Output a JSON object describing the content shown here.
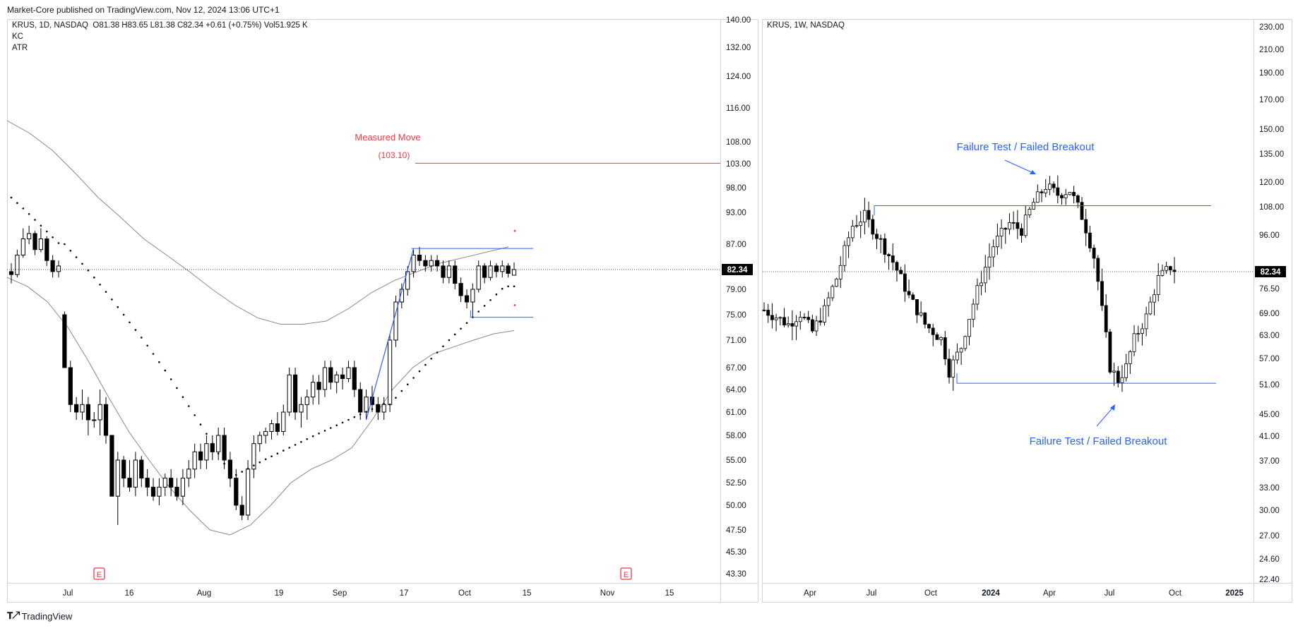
{
  "publisher_line": "Market-Core published on TradingView.com, Nov 12, 2024 13:06 UTC+1",
  "footer_brand": "TradingView",
  "left_panel": {
    "header": "KRUS, 1D, NASDAQ",
    "ohlc": "O81.38  H83.65  L81.38  C82.34  +0.61 (+0.75%)  Vol51.925 K",
    "indicators": [
      "KC",
      "ATR"
    ],
    "last_price": "82.34",
    "annotation_title": "Measured Move",
    "annotation_value": "(103.10)",
    "earnings_marker": "E"
  },
  "right_panel": {
    "header": "KRUS, 1W, NASDAQ",
    "last_price": "82.34",
    "annotation_top": "Failure Test / Failed Breakout",
    "annotation_bottom": "Failure Test / Failed Breakout"
  },
  "colors": {
    "up": "#ffffff",
    "down": "#000000",
    "outline": "#000000",
    "channel": "#888888",
    "measured_move": "#f23645",
    "level_lines": "#2962ff",
    "annotation_blue": "#2962ff"
  },
  "chart_data": [
    {
      "type": "candlestick",
      "timeframe": "1D",
      "y_ticks": [
        "140.00",
        "132.00",
        "124.00",
        "116.00",
        "108.00",
        "103.00",
        "98.00",
        "93.00",
        "87.00",
        "82.34",
        "79.00",
        "75.00",
        "71.00",
        "67.00",
        "64.00",
        "61.00",
        "58.00",
        "55.00",
        "52.50",
        "50.00",
        "47.50",
        "45.30",
        "43.30"
      ],
      "x_ticks": [
        "Jul",
        "16",
        "Aug",
        "19",
        "Sep",
        "17",
        "Oct",
        "15",
        "Nov",
        "15"
      ],
      "ylim": [
        43.3,
        140
      ],
      "y_scale": "log",
      "last_close": 82.34,
      "measured_move_target": 103.1,
      "range_high": 86.2,
      "range_low": 74.6,
      "candles": [
        [
          82,
          83.5,
          80,
          81.5
        ],
        [
          81.5,
          86,
          81,
          85
        ],
        [
          85,
          90,
          84.5,
          88
        ],
        [
          88,
          90.5,
          87,
          89
        ],
        [
          89,
          89.5,
          85,
          86
        ],
        [
          86,
          90,
          85.5,
          88
        ],
        [
          88,
          88.5,
          83,
          84
        ],
        [
          84,
          85,
          81,
          82
        ],
        [
          82,
          84,
          81,
          83
        ],
        [
          75,
          75.5,
          67,
          67
        ],
        [
          67,
          68,
          61,
          62
        ],
        [
          62,
          63,
          60,
          61
        ],
        [
          61,
          64,
          60,
          62
        ],
        [
          62,
          63,
          58,
          60
        ],
        [
          60,
          61,
          59,
          60
        ],
        [
          60,
          64,
          58,
          62
        ],
        [
          62,
          63,
          57,
          58
        ],
        [
          58,
          58,
          51,
          51
        ],
        [
          51,
          56,
          48,
          55
        ],
        [
          55,
          55.5,
          52,
          53
        ],
        [
          53,
          55,
          51.5,
          52
        ],
        [
          52,
          56,
          51,
          55
        ],
        [
          55,
          55.5,
          52,
          53
        ],
        [
          53,
          54,
          51,
          52
        ],
        [
          52,
          53,
          50.5,
          51
        ],
        [
          51,
          53,
          50,
          52
        ],
        [
          52,
          53.5,
          51,
          53
        ],
        [
          53,
          54,
          51,
          52
        ],
        [
          52,
          53,
          50.5,
          51
        ],
        [
          51,
          54,
          50,
          53
        ],
        [
          53,
          55,
          52,
          54
        ],
        [
          54,
          57,
          53,
          56
        ],
        [
          56,
          57,
          54,
          55
        ],
        [
          55,
          58,
          54,
          57
        ],
        [
          57,
          58,
          55,
          56
        ],
        [
          56,
          59,
          55,
          58
        ],
        [
          58,
          59,
          54,
          55
        ],
        [
          55,
          56,
          52,
          53
        ],
        [
          53,
          54,
          49.5,
          50
        ],
        [
          50,
          51,
          48.5,
          49
        ],
        [
          49,
          55,
          48.5,
          54
        ],
        [
          54,
          58,
          53,
          57
        ],
        [
          57,
          58.5,
          56,
          58
        ],
        [
          58,
          59,
          57,
          58.5
        ],
        [
          58.5,
          60,
          57.5,
          59.5
        ],
        [
          59.5,
          61,
          58,
          58.5
        ],
        [
          58.5,
          62,
          58,
          61
        ],
        [
          61,
          67,
          60.5,
          66
        ],
        [
          66,
          67,
          60,
          61
        ],
        [
          61,
          63,
          59,
          62
        ],
        [
          62,
          64,
          60,
          63
        ],
        [
          63,
          66,
          62,
          65
        ],
        [
          65,
          66,
          62,
          64
        ],
        [
          64,
          68,
          63,
          67
        ],
        [
          67,
          68,
          64,
          65
        ],
        [
          65,
          66.5,
          63.5,
          66
        ],
        [
          66,
          67,
          64,
          65.5
        ],
        [
          65.5,
          68,
          65,
          67
        ],
        [
          67,
          68,
          63,
          64
        ],
        [
          64,
          65,
          60,
          61
        ],
        [
          61,
          64,
          60,
          63
        ],
        [
          63,
          64.5,
          61,
          62
        ],
        [
          62,
          63,
          60,
          61
        ],
        [
          61,
          63,
          60,
          62
        ],
        [
          62,
          72,
          61,
          71
        ],
        [
          71,
          78,
          70,
          77
        ],
        [
          77,
          80,
          76,
          79
        ],
        [
          79,
          83,
          78,
          82
        ],
        [
          82,
          86,
          81,
          85
        ],
        [
          85,
          86.5,
          83,
          84
        ],
        [
          84,
          85,
          82,
          83
        ],
        [
          83,
          85,
          82,
          84
        ],
        [
          84,
          85,
          82,
          83
        ],
        [
          83,
          84,
          80,
          81
        ],
        [
          81,
          84,
          80,
          83
        ],
        [
          83,
          84,
          79,
          80
        ],
        [
          80,
          81,
          77,
          78
        ],
        [
          78,
          79,
          76,
          77
        ],
        [
          77,
          80,
          74.6,
          79
        ],
        [
          79,
          84,
          78.5,
          83
        ],
        [
          83,
          83.5,
          80,
          81
        ],
        [
          81,
          84,
          80.5,
          83
        ],
        [
          83,
          83.5,
          81,
          82
        ],
        [
          82,
          84,
          81,
          83
        ],
        [
          83,
          83.5,
          81,
          81.7
        ],
        [
          81.38,
          83.65,
          81.38,
          82.34
        ]
      ],
      "keltner_upper": [
        113,
        110,
        106,
        101,
        96,
        92,
        88,
        85,
        82,
        79,
        76.5,
        74.5,
        73.5,
        73.5,
        74,
        76,
        78.5,
        80.5,
        82,
        83.5,
        84.5,
        85.5,
        86.5
      ],
      "keltner_lower": [
        81,
        79.5,
        77,
        73,
        68,
        63,
        58.5,
        55,
        52,
        49.5,
        47.5,
        47,
        48,
        50,
        52.5,
        54,
        55,
        56.5,
        60,
        64,
        67,
        69,
        70,
        71,
        72,
        72.5
      ]
    },
    {
      "type": "candlestick",
      "timeframe": "1W",
      "y_ticks": [
        "230.00",
        "210.00",
        "190.00",
        "170.00",
        "150.00",
        "135.00",
        "120.00",
        "108.00",
        "96.00",
        "82.34",
        "76.50",
        "69.00",
        "63.00",
        "57.00",
        "51.00",
        "45.00",
        "41.00",
        "37.00",
        "33.00",
        "30.00",
        "27.00",
        "24.60",
        "22.40"
      ],
      "x_ticks": [
        "Apr",
        "Jul",
        "Oct",
        "2024",
        "Apr",
        "Jul",
        "Oct",
        "2025"
      ],
      "ylim": [
        22.4,
        230
      ],
      "y_scale": "log",
      "last_close": 82.34,
      "resistance": 108.5,
      "support": 51.3
    }
  ]
}
